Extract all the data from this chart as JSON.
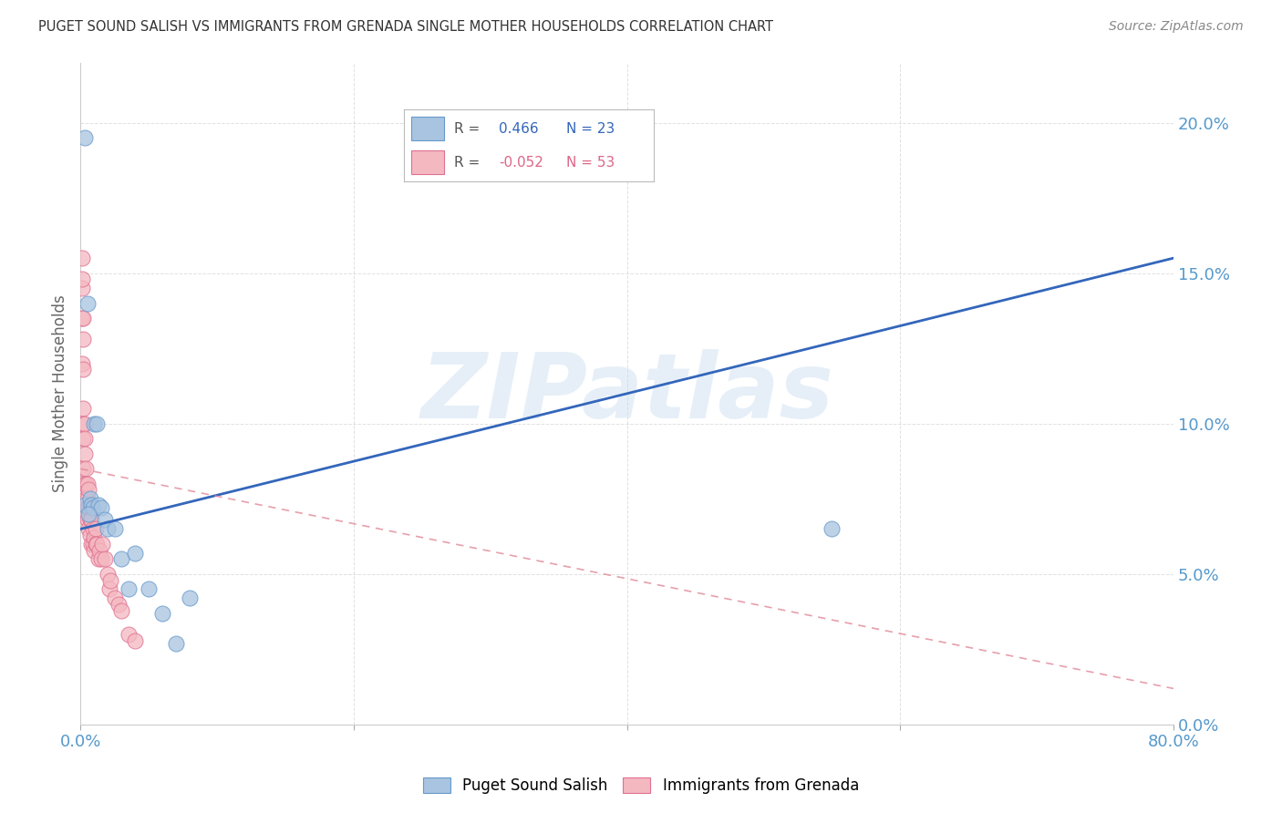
{
  "title": "PUGET SOUND SALISH VS IMMIGRANTS FROM GRENADA SINGLE MOTHER HOUSEHOLDS CORRELATION CHART",
  "source": "Source: ZipAtlas.com",
  "ylabel": "Single Mother Households",
  "blue_label": "Puget Sound Salish",
  "pink_label": "Immigrants from Grenada",
  "watermark": "ZIPatlas",
  "xlim": [
    0.0,
    0.8
  ],
  "ylim": [
    0.0,
    0.22
  ],
  "yticks": [
    0.0,
    0.05,
    0.1,
    0.15,
    0.2
  ],
  "xticks": [
    0.0,
    0.2,
    0.4,
    0.6,
    0.8
  ],
  "xtick_labels_show": [
    true,
    false,
    false,
    false,
    true
  ],
  "blue_scatter_x": [
    0.003,
    0.005,
    0.007,
    0.008,
    0.009,
    0.01,
    0.012,
    0.013,
    0.015,
    0.018,
    0.02,
    0.025,
    0.03,
    0.035,
    0.04,
    0.05,
    0.06,
    0.07,
    0.08,
    0.55,
    0.003,
    0.006
  ],
  "blue_scatter_y": [
    0.073,
    0.14,
    0.075,
    0.073,
    0.072,
    0.1,
    0.1,
    0.073,
    0.072,
    0.068,
    0.065,
    0.065,
    0.055,
    0.045,
    0.057,
    0.045,
    0.037,
    0.027,
    0.042,
    0.065,
    0.195,
    0.07
  ],
  "pink_scatter_x": [
    0.001,
    0.001,
    0.001,
    0.002,
    0.002,
    0.002,
    0.002,
    0.003,
    0.003,
    0.003,
    0.003,
    0.004,
    0.004,
    0.004,
    0.004,
    0.005,
    0.005,
    0.005,
    0.005,
    0.006,
    0.006,
    0.006,
    0.007,
    0.007,
    0.007,
    0.008,
    0.008,
    0.008,
    0.009,
    0.009,
    0.01,
    0.01,
    0.011,
    0.011,
    0.012,
    0.013,
    0.014,
    0.015,
    0.016,
    0.018,
    0.02,
    0.021,
    0.022,
    0.025,
    0.028,
    0.03,
    0.035,
    0.04,
    0.001,
    0.001,
    0.002,
    0.002,
    0.002
  ],
  "pink_scatter_y": [
    0.145,
    0.135,
    0.12,
    0.105,
    0.1,
    0.095,
    0.085,
    0.1,
    0.095,
    0.09,
    0.08,
    0.085,
    0.08,
    0.075,
    0.07,
    0.08,
    0.075,
    0.072,
    0.068,
    0.078,
    0.072,
    0.065,
    0.072,
    0.068,
    0.063,
    0.072,
    0.068,
    0.06,
    0.065,
    0.06,
    0.062,
    0.058,
    0.065,
    0.06,
    0.06,
    0.055,
    0.058,
    0.055,
    0.06,
    0.055,
    0.05,
    0.045,
    0.048,
    0.042,
    0.04,
    0.038,
    0.03,
    0.028,
    0.155,
    0.148,
    0.135,
    0.128,
    0.118
  ],
  "blue_line_x": [
    0.0,
    0.8
  ],
  "blue_line_y": [
    0.065,
    0.155
  ],
  "pink_line_x": [
    0.0,
    0.8
  ],
  "pink_line_y": [
    0.085,
    0.012
  ],
  "blue_color": "#A8C4E0",
  "blue_edge_color": "#6699CC",
  "pink_color": "#F4B8C1",
  "pink_edge_color": "#E07090",
  "blue_line_color": "#3366BB",
  "pink_line_color": "#E08898",
  "grid_color": "#CCCCCC",
  "axis_label_color": "#5599CC",
  "title_color": "#333333",
  "source_color": "#888888",
  "ylabel_color": "#666666",
  "background_color": "#FFFFFF",
  "legend_r_color": "#555555",
  "legend_blue_val_color": "#3366BB",
  "legend_pink_val_color": "#DD6688"
}
